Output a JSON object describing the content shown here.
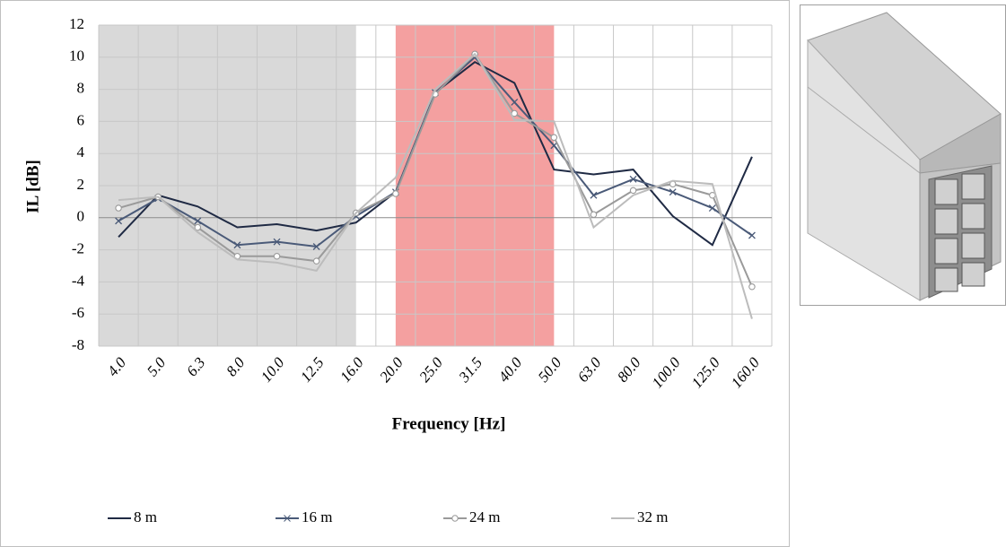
{
  "chart_data": {
    "type": "line",
    "x_label": "Frequency [Hz]",
    "y_label": "IL [dB]",
    "categories": [
      "4.0",
      "5.0",
      "6.3",
      "8.0",
      "10.0",
      "12.5",
      "16.0",
      "20.0",
      "25.0",
      "31.5",
      "40.0",
      "50.0",
      "63.0",
      "80.0",
      "100.0",
      "125.0",
      "160.0"
    ],
    "series": [
      {
        "name": "8 m",
        "color": "#1f2a44",
        "marker": null,
        "values": [
          -1.2,
          1.4,
          0.7,
          -0.6,
          -0.4,
          -0.8,
          -0.3,
          1.6,
          7.8,
          9.7,
          8.4,
          3.0,
          2.7,
          3.0,
          0.1,
          -1.7,
          3.8
        ]
      },
      {
        "name": "16 m",
        "color": "#4a5a78",
        "marker": "x",
        "values": [
          -0.2,
          1.2,
          -0.2,
          -1.7,
          -1.5,
          -1.8,
          0.1,
          1.6,
          7.8,
          10.0,
          7.2,
          4.5,
          1.4,
          2.4,
          1.6,
          0.6,
          -1.1
        ]
      },
      {
        "name": "24 m",
        "color": "#9a9a9a",
        "marker": "circle",
        "values": [
          0.6,
          1.3,
          -0.6,
          -2.4,
          -2.4,
          -2.7,
          0.3,
          1.5,
          7.7,
          10.2,
          6.5,
          5.0,
          0.2,
          1.7,
          2.1,
          1.4,
          -4.3
        ]
      },
      {
        "name": "32 m",
        "color": "#bcbcbc",
        "marker": null,
        "values": [
          1.1,
          1.3,
          -0.9,
          -2.6,
          -2.8,
          -3.3,
          0.3,
          2.5,
          8.0,
          10.2,
          6.1,
          6.0,
          -0.6,
          1.4,
          2.3,
          2.1,
          -6.3
        ]
      }
    ],
    "ylim": [
      -8,
      12
    ],
    "yticks": [
      -8,
      -6,
      -4,
      -2,
      0,
      2,
      4,
      6,
      8,
      10,
      12
    ],
    "grid": true,
    "shaded_ranges": [
      {
        "from": "4.0",
        "to": "16.0",
        "color": "#d9d9d9"
      },
      {
        "from": "20.0",
        "to": "50.0",
        "color": "#f4a0a0"
      }
    ],
    "legend": "bottom"
  }
}
